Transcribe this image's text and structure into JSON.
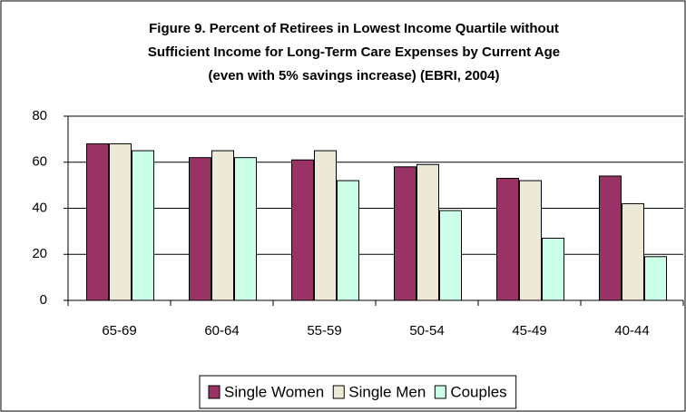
{
  "chart_data": {
    "type": "bar",
    "title": [
      "Figure 9.  Percent of Retirees in Lowest Income Quartile without",
      "Sufficient Income for Long-Term Care Expenses by Current Age",
      "(even with 5% savings increase) (EBRI, 2004)"
    ],
    "categories": [
      "65-69",
      "60-64",
      "55-59",
      "50-54",
      "45-49",
      "40-44"
    ],
    "series": [
      {
        "name": "Single Women",
        "color": "#993366",
        "values": [
          68,
          62,
          61,
          58,
          53,
          54
        ]
      },
      {
        "name": "Single Men",
        "color": "#ece9d8",
        "values": [
          68,
          65,
          65,
          59,
          52,
          42
        ]
      },
      {
        "name": "Couples",
        "color": "#ccffe8",
        "values": [
          65,
          62,
          52,
          39,
          27,
          19
        ]
      }
    ],
    "ylim": [
      0,
      80
    ],
    "yticks": [
      0,
      20,
      40,
      60,
      80
    ],
    "grid": true,
    "legend": "bottom"
  }
}
